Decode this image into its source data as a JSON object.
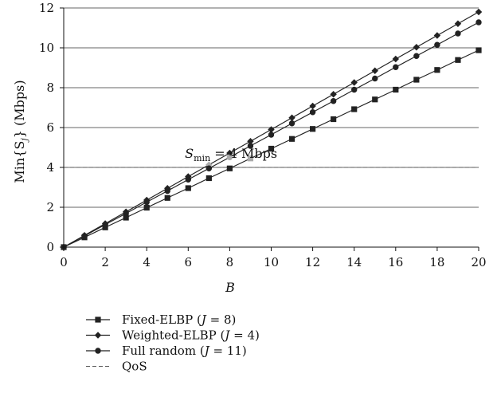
{
  "chart_data": {
    "type": "line",
    "title": "",
    "xlabel": "B",
    "ylabel_main": "Min{S",
    "ylabel_sub": "j",
    "ylabel_tail": "} (Mbps)",
    "xlim": [
      0,
      20
    ],
    "ylim": [
      0,
      12
    ],
    "xticks": [
      "0",
      "2",
      "4",
      "6",
      "8",
      "10",
      "12",
      "14",
      "16",
      "18",
      "20"
    ],
    "yticks": [
      "0",
      "2",
      "4",
      "6",
      "8",
      "10",
      "12"
    ],
    "grid": "horizontal",
    "legend_position": "bottom-left",
    "annotation": {
      "symbol": "S",
      "subscript": "min",
      "text": " = 4 Mbps",
      "x": 7.3,
      "y": 4.4
    },
    "series": [
      {
        "name": "Fixed-ELBP (J = 8)",
        "legend_prefix": "Fixed-ELBP (",
        "legend_var": "J",
        "legend_suffix": " = 8)",
        "marker": "square",
        "color": "#222222",
        "highlight_color": "#aaaaaa",
        "highlight_x": [
          9
        ],
        "x": [
          0,
          1,
          2,
          3,
          4,
          5,
          6,
          7,
          8,
          9,
          10,
          11,
          12,
          13,
          14,
          15,
          16,
          17,
          18,
          19,
          20
        ],
        "y": [
          0,
          0.49,
          0.99,
          1.48,
          1.98,
          2.47,
          2.96,
          3.46,
          3.95,
          4.45,
          4.94,
          5.43,
          5.93,
          6.42,
          6.92,
          7.41,
          7.9,
          8.4,
          8.89,
          9.39,
          9.88
        ]
      },
      {
        "name": "Weighted-ELBP (J = 4)",
        "legend_prefix": "Weighted-ELBP (",
        "legend_var": "J",
        "legend_suffix": " = 4)",
        "marker": "diamond",
        "color": "#222222",
        "highlight_color": "#aaaaaa",
        "highlight_x": [
          7
        ],
        "x": [
          0,
          1,
          2,
          3,
          4,
          5,
          6,
          7,
          8,
          9,
          10,
          11,
          12,
          13,
          14,
          15,
          16,
          17,
          18,
          19,
          20
        ],
        "y": [
          0,
          0.59,
          1.18,
          1.77,
          2.36,
          2.95,
          3.54,
          4.13,
          4.72,
          5.31,
          5.9,
          6.49,
          7.08,
          7.67,
          8.26,
          8.85,
          9.44,
          10.03,
          10.62,
          11.21,
          11.8
        ]
      },
      {
        "name": "Full random (J = 11)",
        "legend_prefix": "Full random (",
        "legend_var": "J",
        "legend_suffix": " = 11)",
        "marker": "circle",
        "color": "#222222",
        "highlight_color": "#aaaaaa",
        "highlight_x": [
          8
        ],
        "x": [
          0,
          1,
          2,
          3,
          4,
          5,
          6,
          7,
          8,
          9,
          10,
          11,
          12,
          13,
          14,
          15,
          16,
          17,
          18,
          19,
          20
        ],
        "y": [
          0,
          0.56,
          1.13,
          1.69,
          2.26,
          2.82,
          3.39,
          3.95,
          4.51,
          5.08,
          5.64,
          6.21,
          6.77,
          7.33,
          7.9,
          8.46,
          9.03,
          9.59,
          10.15,
          10.72,
          11.28
        ]
      },
      {
        "name": "QoS",
        "legend_prefix": "QoS",
        "legend_var": "",
        "legend_suffix": "",
        "marker": "none",
        "dashed": true,
        "color": "#555555",
        "x": [
          0,
          20
        ],
        "y": [
          4,
          4
        ]
      }
    ]
  }
}
